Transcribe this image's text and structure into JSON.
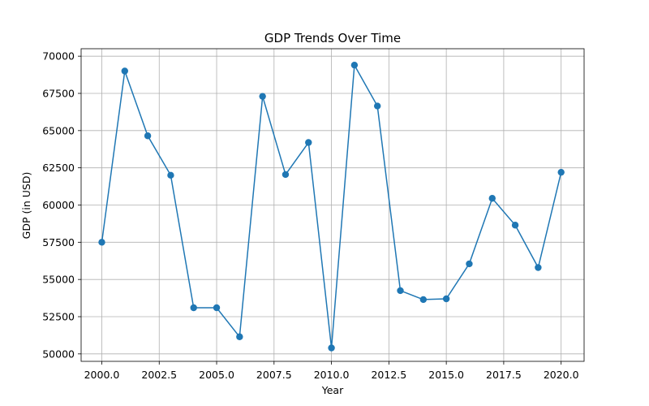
{
  "chart_data": {
    "type": "line",
    "title": "GDP Trends Over Time",
    "xlabel": "Year",
    "ylabel": "GDP (in USD)",
    "xlim": [
      1999.1,
      2021.0
    ],
    "ylim": [
      49500,
      70500
    ],
    "grid": true,
    "color": "#1f77b4",
    "x_ticks": [
      2000.0,
      2002.5,
      2005.0,
      2007.5,
      2010.0,
      2012.5,
      2015.0,
      2017.5,
      2020.0
    ],
    "x_tick_labels": [
      "2000.0",
      "2002.5",
      "2005.0",
      "2007.5",
      "2010.0",
      "2012.5",
      "2015.0",
      "2017.5",
      "2020.0"
    ],
    "y_ticks": [
      50000,
      52500,
      55000,
      57500,
      60000,
      62500,
      65000,
      67500,
      70000
    ],
    "y_tick_labels": [
      "50000",
      "52500",
      "55000",
      "57500",
      "60000",
      "62500",
      "65000",
      "67500",
      "70000"
    ],
    "x": [
      2000,
      2001,
      2002,
      2003,
      2004,
      2005,
      2006,
      2007,
      2008,
      2009,
      2010,
      2011,
      2012,
      2013,
      2014,
      2015,
      2016,
      2017,
      2018,
      2019,
      2020
    ],
    "values": [
      57500,
      69000,
      64650,
      62000,
      53100,
      53100,
      51150,
      67300,
      62050,
      64200,
      50400,
      69400,
      66650,
      54250,
      53650,
      53700,
      56050,
      60450,
      58650,
      55800,
      62200
    ]
  }
}
